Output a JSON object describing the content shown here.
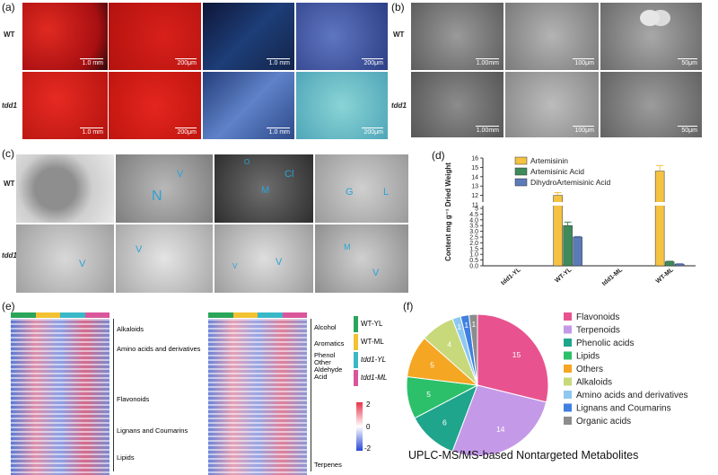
{
  "panels": {
    "a": {
      "label": "(a)",
      "rows": [
        "WT",
        "tdd1"
      ],
      "scales": [
        [
          "1.0 mm",
          "200μm",
          "1.0 mm",
          "200μm"
        ],
        [
          "1.0 mm",
          "200μm",
          "1.0 mm",
          "200μm"
        ]
      ]
    },
    "b": {
      "label": "(b)",
      "rows": [
        "WT",
        "tdd1"
      ],
      "scales": [
        [
          "1.00mm",
          "100μm",
          "50μm"
        ],
        [
          "1.00mm",
          "100μm",
          "50μm"
        ]
      ]
    },
    "c": {
      "label": "(c)",
      "rows": [
        "WT",
        "tdd1"
      ],
      "labels_top": [
        "V",
        "N",
        "O",
        "Cl",
        "M",
        "G",
        "L"
      ],
      "labels_bottom": [
        "V",
        "V",
        "V",
        "V",
        "M",
        "V"
      ]
    },
    "d": {
      "label": "(d)"
    },
    "e": {
      "label": "(e)",
      "left_categories": [
        "Alkaloids",
        "Amino acids and derivatives",
        "Flavonoids",
        "Lignans and Coumarins",
        "Lipids"
      ],
      "right_categories": [
        "Alcohol",
        "Aromatics",
        "Phenol",
        "Other",
        "Aldehyde",
        "Acid",
        "Terpenes"
      ],
      "group_legend": [
        {
          "name": "WT-YL",
          "color": "#2aa55a"
        },
        {
          "name": "WT-ML",
          "color": "#f2c232"
        },
        {
          "name": "tdd1-YL",
          "color": "#3ab8c8"
        },
        {
          "name": "tdd1-ML",
          "color": "#d9569a"
        }
      ],
      "scale_ticks": [
        "2",
        "0",
        "-2"
      ]
    },
    "f": {
      "label": "(f)",
      "caption": "UPLC-MS/MS-based Nontargeted Metabolites"
    }
  },
  "chart_data": [
    {
      "type": "bar",
      "panel": "d",
      "categories": [
        "tdd1-YL",
        "WT-YL",
        "tdd1-ML",
        "WT-ML"
      ],
      "ylabel": "Content mg g⁻¹ Dried Weight",
      "ylim": [
        0,
        16
      ],
      "yaxis_break": [
        5,
        11
      ],
      "yticks": [
        "0.0",
        "0.5",
        "1.0",
        "1.5",
        "2.0",
        "2.5",
        "3.0",
        "3.5",
        "4.0",
        "4.5",
        "5",
        "11",
        "12",
        "13",
        "14",
        "15",
        "16"
      ],
      "series": [
        {
          "name": "Artemisinin",
          "color": "#f5c242",
          "values": [
            0,
            12.0,
            0,
            14.6
          ],
          "errors": [
            0,
            0.3,
            0,
            0.6
          ]
        },
        {
          "name": "Artemisinic Acid",
          "color": "#3e8a5a",
          "values": [
            0,
            3.5,
            0,
            0.35
          ],
          "errors": [
            0,
            0.3,
            0,
            0.05
          ]
        },
        {
          "name": "DihydroArtemisinic Acid",
          "color": "#5a7ab8",
          "values": [
            0,
            2.5,
            0,
            0.15
          ],
          "errors": [
            0,
            0.05,
            0,
            0.03
          ]
        }
      ]
    },
    {
      "type": "pie",
      "panel": "f",
      "labels": [
        "Flavonoids",
        "Terpenoids",
        "Phenolic acids",
        "Lipids",
        "Others",
        "Alkaloids",
        "Amino acids and derivatives",
        "Lignans and Coumarins",
        "Organic acids"
      ],
      "values": [
        15,
        14,
        6,
        5,
        5,
        4,
        1,
        1,
        1
      ],
      "colors": [
        "#e8538f",
        "#c49ae8",
        "#1fa58c",
        "#2cc06a",
        "#f5a623",
        "#c7d97a",
        "#8ec8f0",
        "#3f80e0",
        "#8c8c8c"
      ]
    }
  ]
}
